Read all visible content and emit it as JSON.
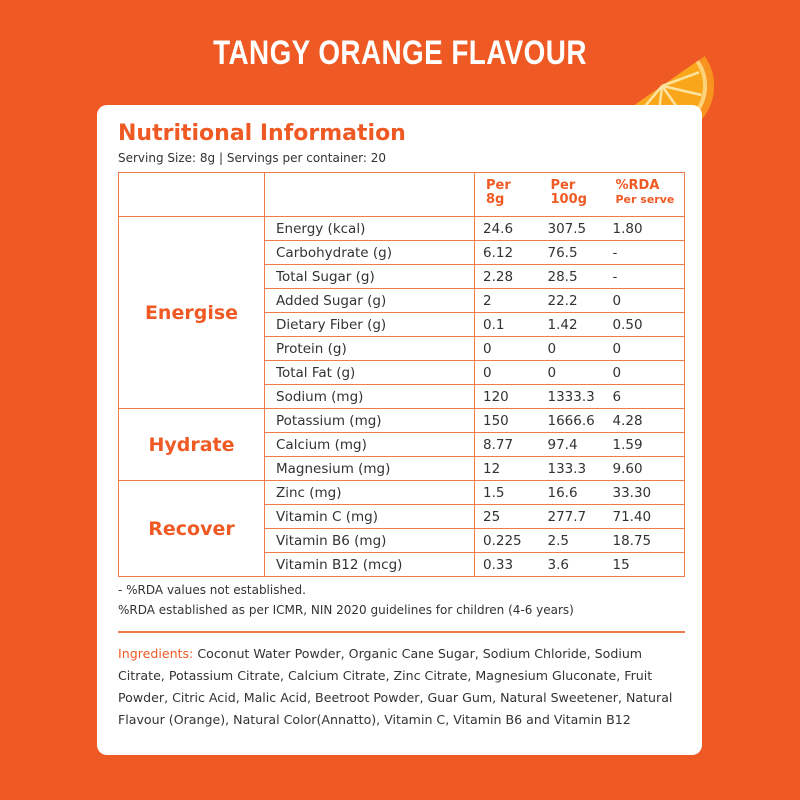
{
  "title": "TANGY ORANGE FLAVOUR",
  "panel": {
    "heading": "Nutritional Information",
    "serving": "Serving Size: 8g | Servings per container: 20"
  },
  "table": {
    "headers": [
      [
        "Per",
        "8g"
      ],
      [
        "Per",
        "100g"
      ],
      [
        "%RDA",
        "Per serve"
      ]
    ],
    "groups": [
      {
        "label": "Energise",
        "rows": [
          [
            "Energy (kcal)",
            "24.6",
            "307.5",
            "1.80"
          ],
          [
            "Carbohydrate (g)",
            "6.12",
            "76.5",
            "-"
          ],
          [
            "Total Sugar (g)",
            "2.28",
            "28.5",
            "-"
          ],
          [
            "Added Sugar (g)",
            "2",
            "22.2",
            "0"
          ],
          [
            "Dietary Fiber (g)",
            "0.1",
            "1.42",
            "0.50"
          ],
          [
            "Protein (g)",
            "0",
            "0",
            "0"
          ],
          [
            "Total Fat (g)",
            "0",
            "0",
            "0"
          ],
          [
            "Sodium (mg)",
            "120",
            "1333.3",
            "6"
          ]
        ]
      },
      {
        "label": "Hydrate",
        "rows": [
          [
            "Potassium (mg)",
            "150",
            "1666.6",
            "4.28"
          ],
          [
            "Calcium (mg)",
            "8.77",
            "97.4",
            "1.59"
          ],
          [
            "Magnesium (mg)",
            "12",
            "133.3",
            "9.60"
          ]
        ]
      },
      {
        "label": "Recover",
        "rows": [
          [
            "Zinc (mg)",
            "1.5",
            "16.6",
            "33.30"
          ],
          [
            "Vitamin C (mg)",
            "25",
            "277.7",
            "71.40"
          ],
          [
            "Vitamin B6 (mg)",
            "0.225",
            "2.5",
            "18.75"
          ],
          [
            "Vitamin B12 (mcg)",
            "0.33",
            "3.6",
            "15"
          ]
        ]
      }
    ]
  },
  "footnotes": [
    "- %RDA values not established.",
    "%RDA established as per ICMR, NIN 2020 guidelines for children (4-6 years)"
  ],
  "ingredients": {
    "label": "Ingredients:",
    "text": "Coconut Water Powder, Organic Cane Sugar, Sodium Chloride, Sodium Citrate, Potassium Citrate, Calcium Citrate, Zinc Citrate, Magnesium Gluconate, Fruit Powder, Citric Acid, Malic Acid, Beetroot Powder, Guar Gum, Natural Sweetener, Natural Flavour (Orange), Natural Color(Annatto), Vitamin C, Vitamin B6 and Vitamin B12"
  }
}
